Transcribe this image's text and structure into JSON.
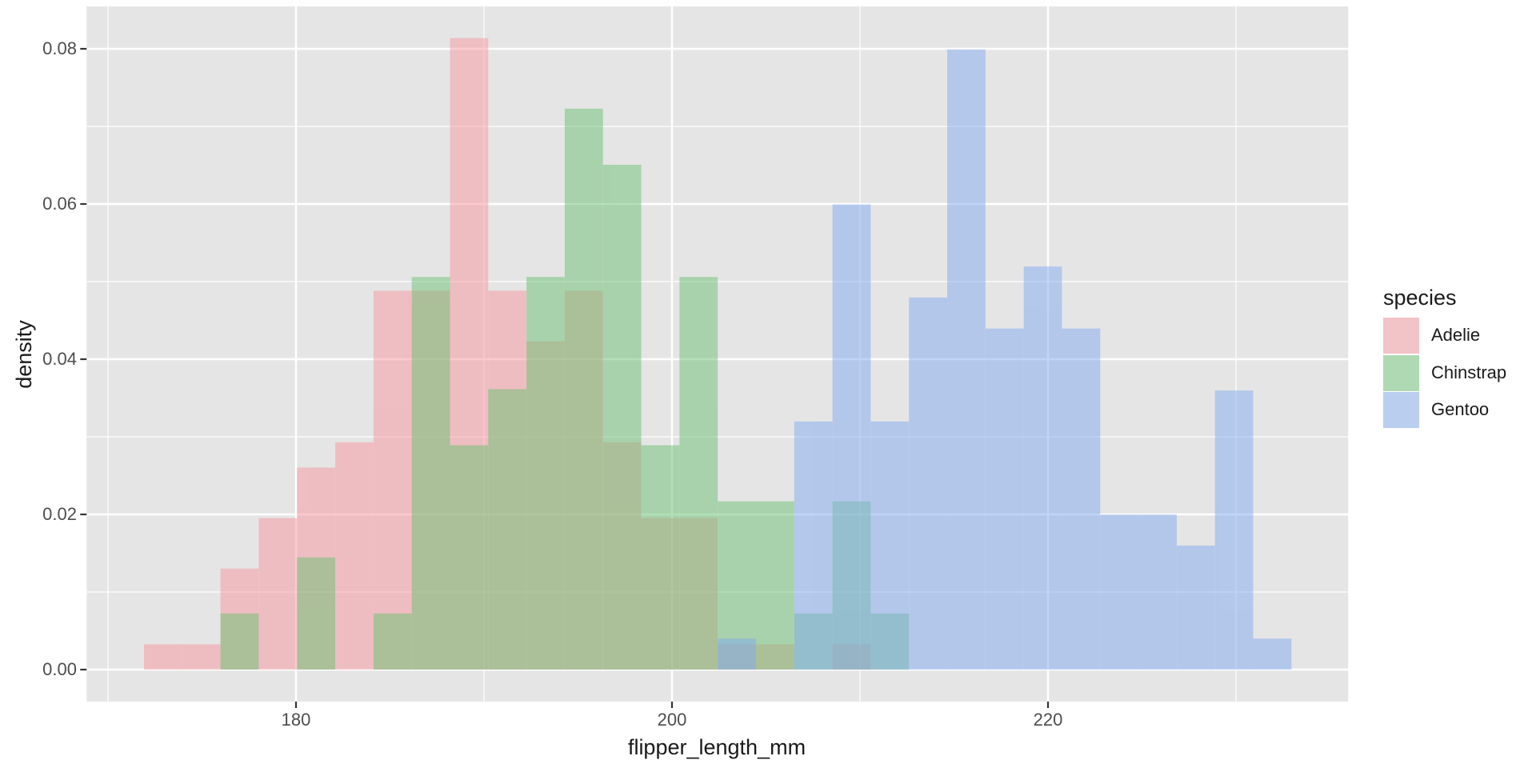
{
  "chart_data": {
    "type": "histogram",
    "title": "",
    "xlabel": "flipper_length_mm",
    "ylabel": "density",
    "legend": {
      "title": "species",
      "position": "right"
    },
    "x_axis": {
      "labels": [
        "180",
        "200",
        "220"
      ],
      "major_ticks": [
        180,
        200,
        220
      ],
      "minor_gridlines": [
        170,
        190,
        210,
        230
      ],
      "range_mm": [
        168.8,
        236.0
      ]
    },
    "y_axis": {
      "labels": [
        "0.00",
        "0.02",
        "0.04",
        "0.06",
        "0.08"
      ],
      "major_ticks": [
        0,
        0.02,
        0.04,
        0.06,
        0.08
      ],
      "minor_gridlines": [
        0.01,
        0.03,
        0.05,
        0.07
      ],
      "range": [
        -0.0041,
        0.0855
      ]
    },
    "bins": {
      "origin_mm": 171.915,
      "width_mm": 2.0345,
      "count": 30
    },
    "series": [
      {
        "name": "Adelie",
        "n": 151,
        "fill": "#F7979F",
        "fill_alpha": 0.5,
        "legend_swatch": "#F2C3C7",
        "counts": [
          1,
          1,
          4,
          6,
          8,
          9,
          15,
          15,
          25,
          15,
          13,
          15,
          9,
          6,
          6,
          1,
          1,
          0,
          1,
          0,
          0,
          0,
          0,
          0,
          0,
          0,
          0,
          0,
          0,
          0
        ]
      },
      {
        "name": "Chinstrap",
        "n": 68,
        "fill": "#6BC173",
        "fill_alpha": 0.5,
        "legend_swatch": "#AFD9B3",
        "counts": [
          0,
          0,
          1,
          0,
          2,
          0,
          1,
          7,
          4,
          5,
          7,
          10,
          9,
          4,
          7,
          3,
          3,
          1,
          3,
          1,
          0,
          0,
          0,
          0,
          0,
          0,
          0,
          0,
          0,
          0
        ]
      },
      {
        "name": "Gentoo",
        "n": 123,
        "fill": "#83ABF1",
        "fill_alpha": 0.5,
        "legend_swatch": "#BACEF0",
        "counts": [
          0,
          0,
          0,
          0,
          0,
          0,
          0,
          0,
          0,
          0,
          0,
          0,
          0,
          0,
          0,
          1,
          0,
          8,
          15,
          8,
          12,
          20,
          11,
          13,
          11,
          5,
          5,
          4,
          9,
          1
        ]
      }
    ],
    "colors": {
      "panel_bg": "#E5E5E5",
      "gridline": "#FFFFFF",
      "tick_mark": "#333333",
      "tick_label": "#4D4D4D",
      "title_text": "#1A1A1A"
    }
  }
}
